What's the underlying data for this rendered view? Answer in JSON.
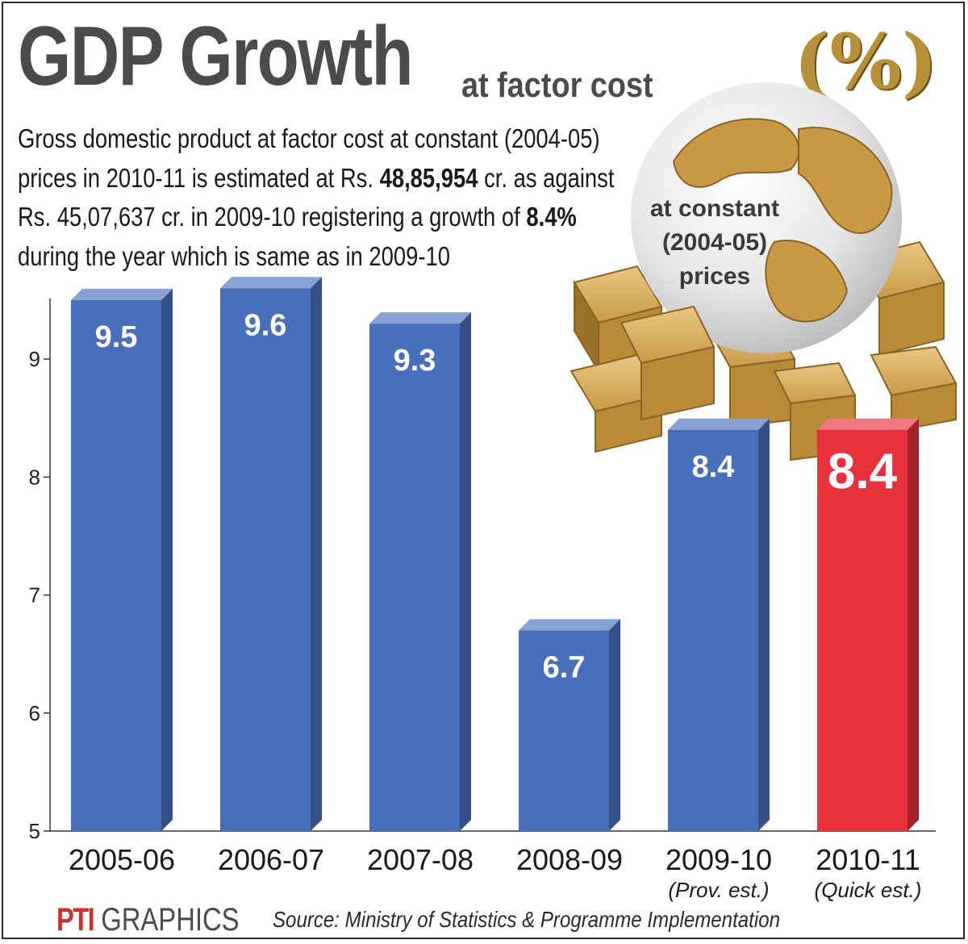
{
  "header": {
    "title": "GDP Growth",
    "subtitle": "at factor cost",
    "unit": "(%)"
  },
  "description": {
    "part1": "Gross domestic product at factor cost at constant (2004-05) prices in 2010-11 is estimated at Rs. ",
    "amount": "48,85,954",
    "part2": " cr. as against Rs. 45,07,637 cr. in 2009-10 registering a growth of ",
    "growth": "8.4%",
    "part3": " during the year which is same as in 2009-10"
  },
  "badge": {
    "line1": "at constant",
    "line2": "(2004-05)",
    "line3": "prices"
  },
  "footer": {
    "brand": "PTI",
    "brand_suffix": "GRAPHICS",
    "source": "Source: Ministry of Statistics & Programme Implementation"
  },
  "colors": {
    "bar": "#4a6fba",
    "highlight_bar": "#e8313d",
    "label_text": "#ffffff"
  },
  "chart_data": {
    "type": "bar",
    "categories": [
      "2005-06",
      "2006-07",
      "2007-08",
      "2008-09",
      "2009-10",
      "2010-11"
    ],
    "category_notes": [
      "",
      "",
      "",
      "",
      "(Prov. est.)",
      "(Quick est.)"
    ],
    "values": [
      9.5,
      9.6,
      9.3,
      6.7,
      8.4,
      8.4
    ],
    "data_labels": [
      "9.5",
      "9.6",
      "9.3",
      "6.7",
      "8.4",
      "8.4"
    ],
    "highlight_index": 5,
    "yticks": [
      5,
      6,
      7,
      8,
      9
    ],
    "ylim": [
      5,
      9.6
    ],
    "grid": false,
    "legend": "none"
  }
}
